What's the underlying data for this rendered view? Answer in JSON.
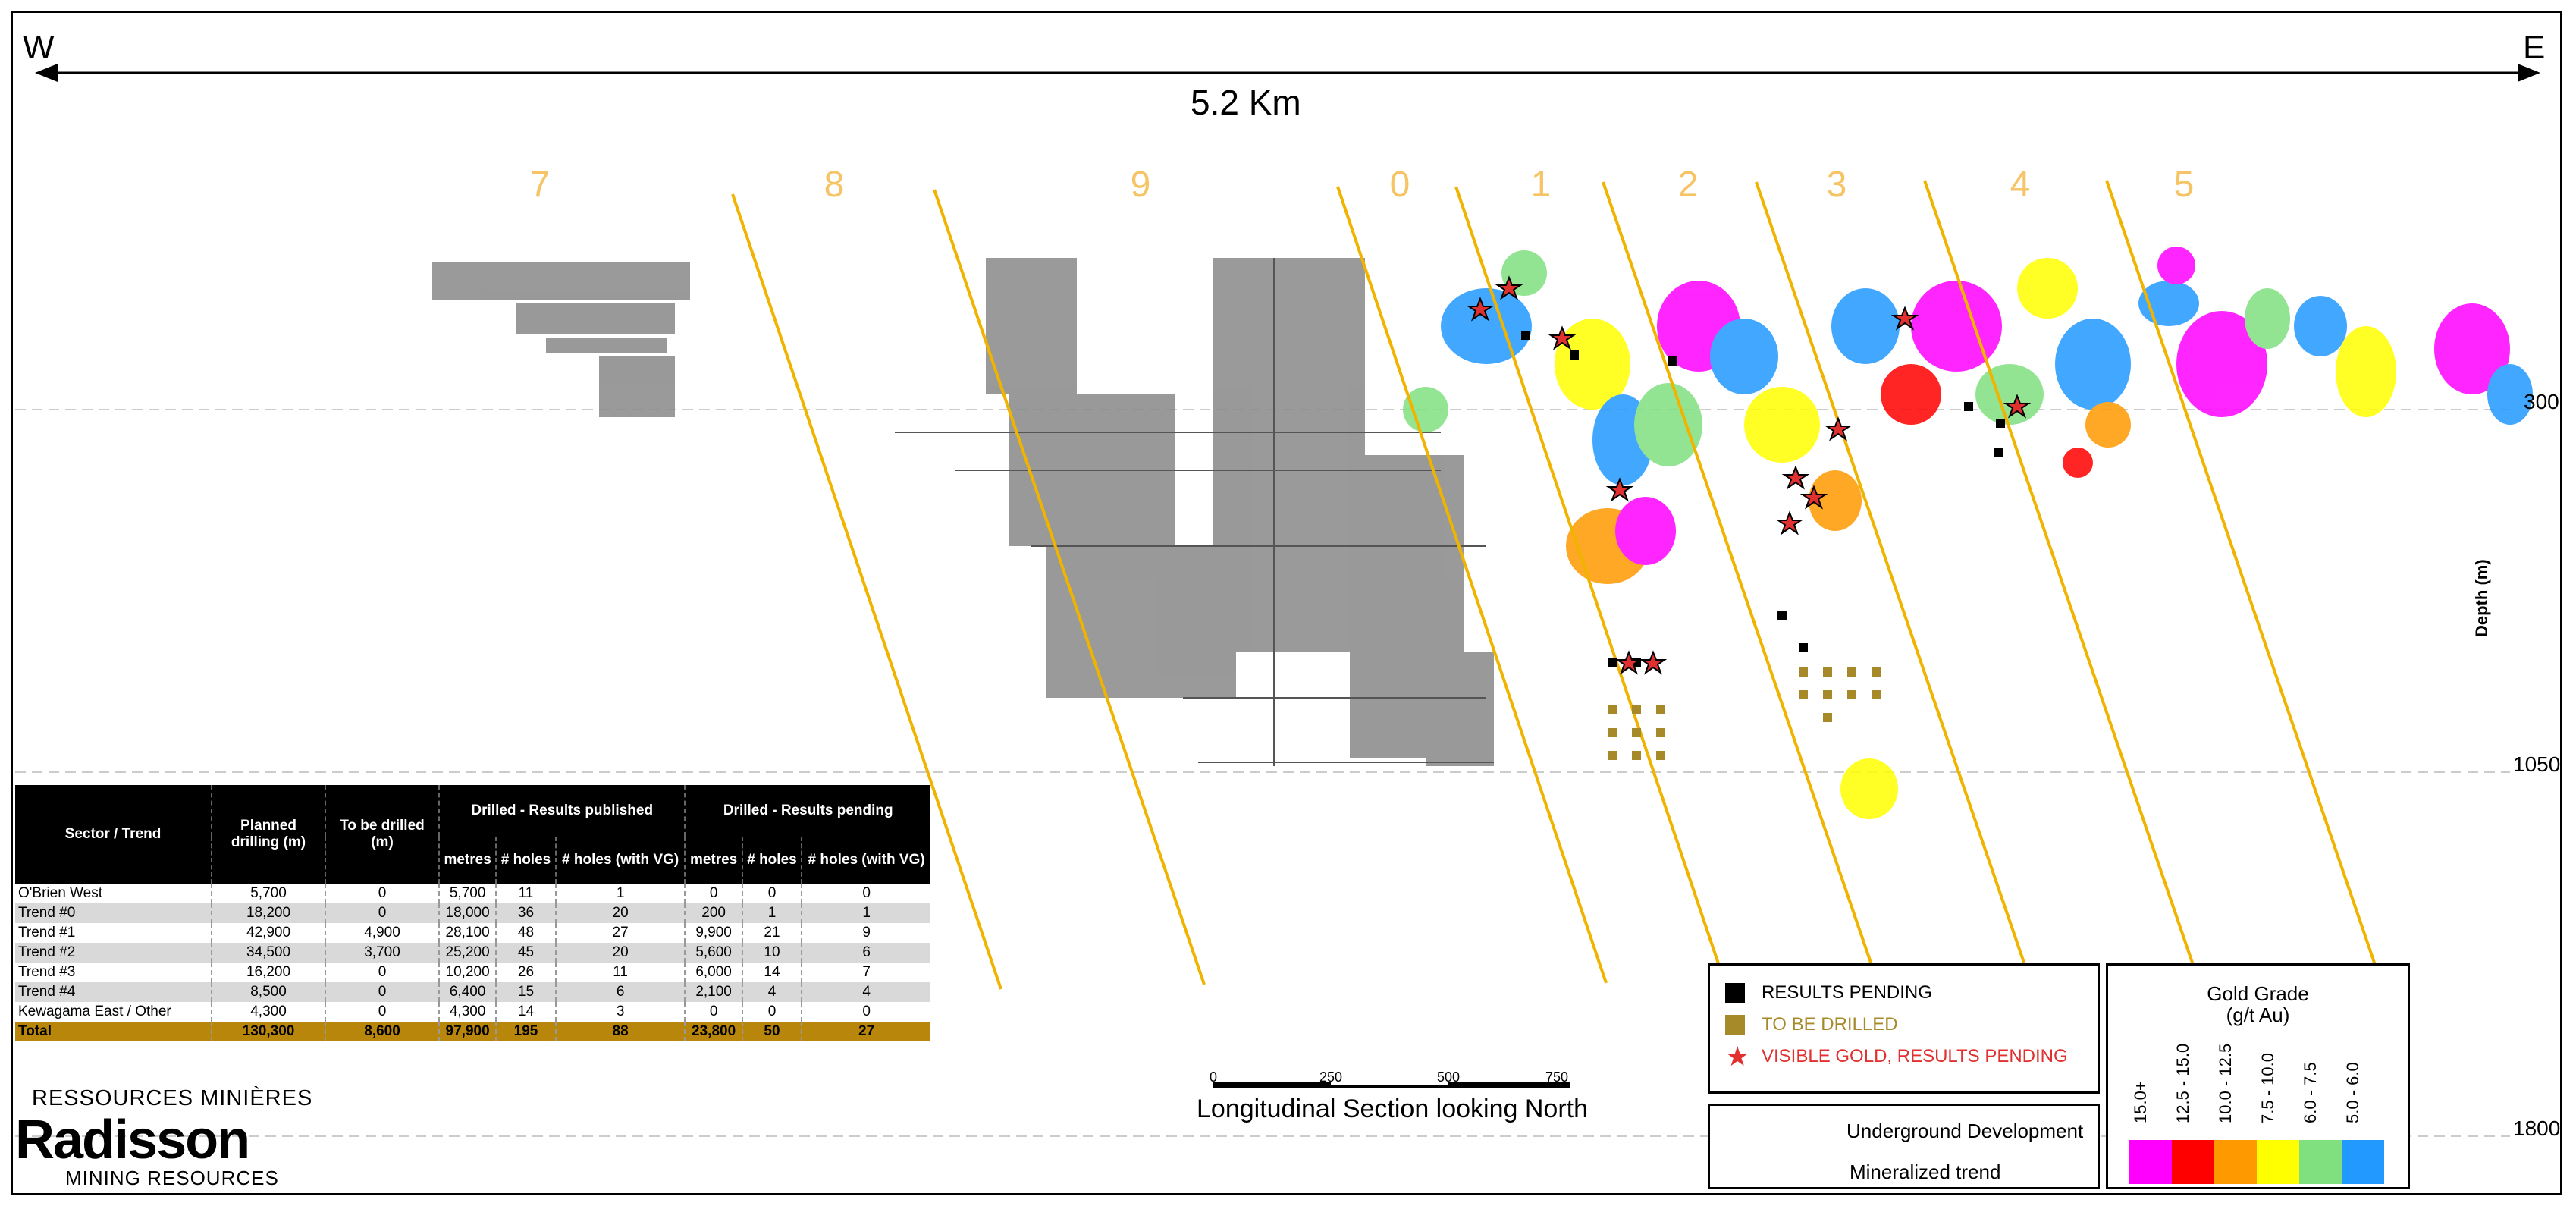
{
  "header": {
    "west": "W",
    "east": "E",
    "distance": "5.2 Km"
  },
  "trends": [
    "7",
    "8",
    "9",
    "0",
    "1",
    "2",
    "3",
    "4",
    "5"
  ],
  "depth": {
    "title": "Depth (m)",
    "ticks": [
      "300",
      "1050",
      "1800"
    ]
  },
  "table": {
    "headers": {
      "sector": "Sector / Trend",
      "planned": "Planned drilling (m)",
      "to_drill": "To be drilled (m)",
      "published": "Drilled - Results published",
      "pending": "Drilled - Results pending",
      "metres": "metres",
      "holes": "# holes",
      "holes_vg": "# holes (with VG)"
    },
    "rows": [
      {
        "sector": "O'Brien West",
        "planned": "5,700",
        "to_drill": "0",
        "pub_m": "5,700",
        "pub_h": "11",
        "pub_vg": "1",
        "pen_m": "0",
        "pen_h": "0",
        "pen_vg": "0"
      },
      {
        "sector": "Trend #0",
        "planned": "18,200",
        "to_drill": "0",
        "pub_m": "18,000",
        "pub_h": "36",
        "pub_vg": "20",
        "pen_m": "200",
        "pen_h": "1",
        "pen_vg": "1"
      },
      {
        "sector": "Trend #1",
        "planned": "42,900",
        "to_drill": "4,900",
        "pub_m": "28,100",
        "pub_h": "48",
        "pub_vg": "27",
        "pen_m": "9,900",
        "pen_h": "21",
        "pen_vg": "9"
      },
      {
        "sector": "Trend #2",
        "planned": "34,500",
        "to_drill": "3,700",
        "pub_m": "25,200",
        "pub_h": "45",
        "pub_vg": "20",
        "pen_m": "5,600",
        "pen_h": "10",
        "pen_vg": "6"
      },
      {
        "sector": "Trend #3",
        "planned": "16,200",
        "to_drill": "0",
        "pub_m": "10,200",
        "pub_h": "26",
        "pub_vg": "11",
        "pen_m": "6,000",
        "pen_h": "14",
        "pen_vg": "7"
      },
      {
        "sector": "Trend #4",
        "planned": "8,500",
        "to_drill": "0",
        "pub_m": "6,400",
        "pub_h": "15",
        "pub_vg": "6",
        "pen_m": "2,100",
        "pen_h": "4",
        "pen_vg": "4"
      },
      {
        "sector": "Kewagama East / Other",
        "planned": "4,300",
        "to_drill": "0",
        "pub_m": "4,300",
        "pub_h": "14",
        "pub_vg": "3",
        "pen_m": "0",
        "pen_h": "0",
        "pen_vg": "0"
      }
    ],
    "total": {
      "sector": "Total",
      "planned": "130,300",
      "to_drill": "8,600",
      "pub_m": "97,900",
      "pub_h": "195",
      "pub_vg": "88",
      "pen_m": "23,800",
      "pen_h": "50",
      "pen_vg": "27"
    }
  },
  "legend": {
    "results_pending": "RESULTS PENDING",
    "to_be_drilled": "TO BE DRILLED",
    "visible_gold": "VISIBLE GOLD, RESULTS PENDING",
    "underground": "Underground Development",
    "trend": "Mineralized trend"
  },
  "grade": {
    "title": "Gold Grade",
    "unit": "(g/t Au)",
    "ranges": [
      "15.0+",
      "12.5 - 15.0",
      "10.0 - 12.5",
      "7.5 - 10.0",
      "6.0 - 7.5",
      "5.0 - 6.0"
    ],
    "colors": [
      "#ff00ff",
      "#ff0000",
      "#ff9900",
      "#ffff00",
      "#80e080",
      "#2299ff"
    ]
  },
  "scale": {
    "ticks": [
      "0",
      "250",
      "500",
      "750"
    ],
    "caption": "Longitudinal Section looking North"
  },
  "logo": {
    "top": "RESSOURCES MINIÈRES",
    "main": "Radisson",
    "bottom": "MINING RESOURCES"
  },
  "colors": {
    "trend_line": "#f0b400",
    "pending": "#000000",
    "to_drill": "#a68a2a",
    "vg_star": "#e03030"
  }
}
